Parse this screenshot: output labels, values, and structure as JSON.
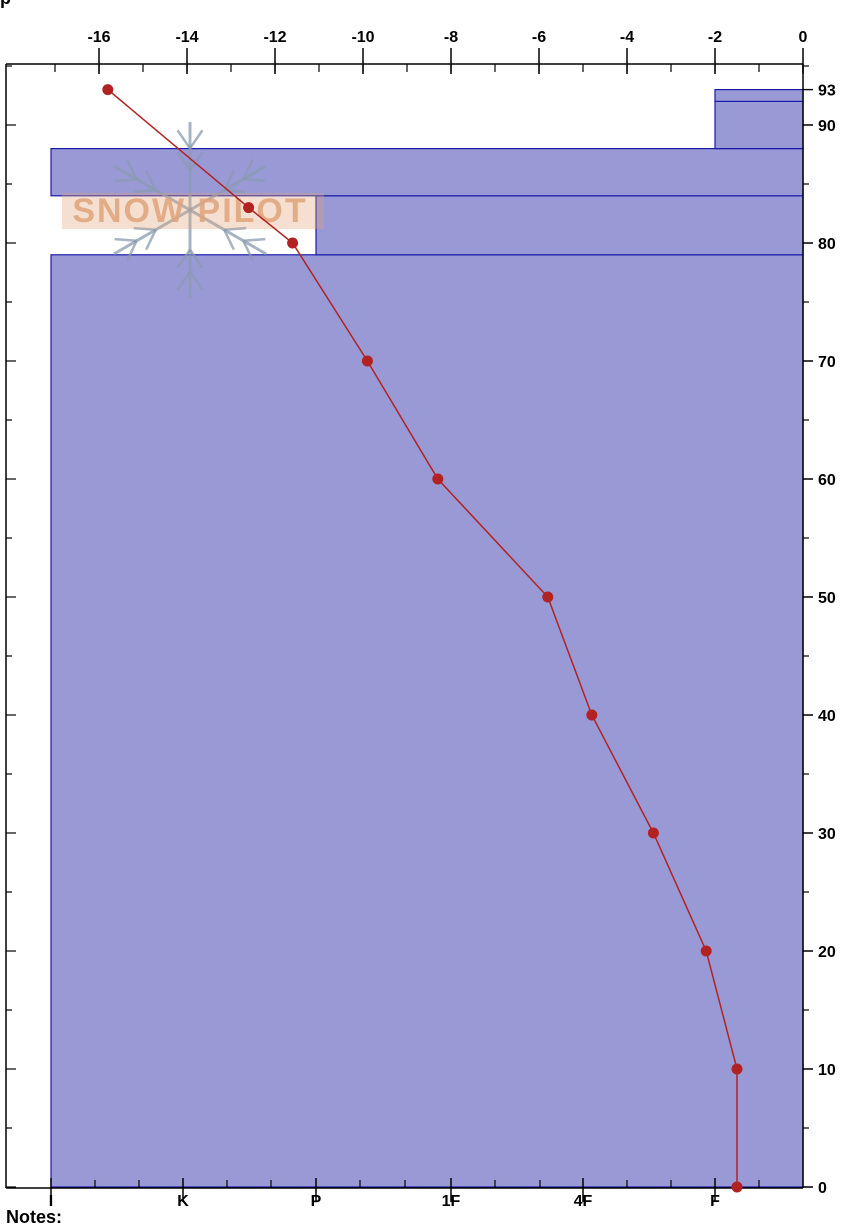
{
  "colors": {
    "layer_fill": "#9999d6",
    "layer_stroke": "#1a1aa8",
    "temperature_line": "#b22222",
    "watermark_text": "#e0a47a",
    "watermark_snowflake": "#8a9bb0"
  },
  "header_fragment": "p",
  "watermark_text": "SNOW PILOT",
  "notes_label": "Notes:",
  "chart_data": {
    "type": "line",
    "x_axis_top": {
      "label": "",
      "range": [
        -17,
        0
      ],
      "ticks": [
        -16,
        -14,
        -12,
        -10,
        -8,
        -6,
        -4,
        -2,
        0
      ],
      "tick_labels": [
        "-16",
        "-14",
        "-12",
        "-10",
        "-8",
        "-6",
        "-4",
        "-2",
        "0"
      ]
    },
    "x_axis_bottom": {
      "label": "",
      "categories": [
        "I",
        "K",
        "P",
        "1F",
        "4F",
        "F"
      ]
    },
    "y_axis_right": {
      "label": "",
      "range": [
        0,
        95
      ],
      "ticks": [
        0,
        10,
        20,
        30,
        40,
        50,
        60,
        70,
        80,
        90,
        93
      ],
      "tick_labels": [
        "0",
        "10",
        "20",
        "30",
        "40",
        "50",
        "60",
        "70",
        "80",
        "90",
        "93"
      ]
    },
    "layers": [
      {
        "bottom": 0,
        "top": 79,
        "hardness": "I"
      },
      {
        "bottom": 79,
        "top": 84,
        "hardness": "P"
      },
      {
        "bottom": 84,
        "top": 88,
        "hardness": "I"
      },
      {
        "bottom": 88,
        "top": 92,
        "hardness": "F"
      },
      {
        "bottom": 92,
        "top": 93,
        "hardness": "F"
      }
    ],
    "series": [
      {
        "points": [
          {
            "height": 93,
            "temp": -15.8
          },
          {
            "height": 83,
            "temp": -12.6
          },
          {
            "height": 80,
            "temp": -11.6
          },
          {
            "height": 70,
            "temp": -9.9
          },
          {
            "height": 60,
            "temp": -8.3
          },
          {
            "height": 50,
            "temp": -5.8
          },
          {
            "height": 40,
            "temp": -4.8
          },
          {
            "height": 30,
            "temp": -3.4
          },
          {
            "height": 20,
            "temp": -2.2
          },
          {
            "height": 10,
            "temp": -1.5
          },
          {
            "height": 0,
            "temp": -1.5
          }
        ]
      }
    ]
  }
}
